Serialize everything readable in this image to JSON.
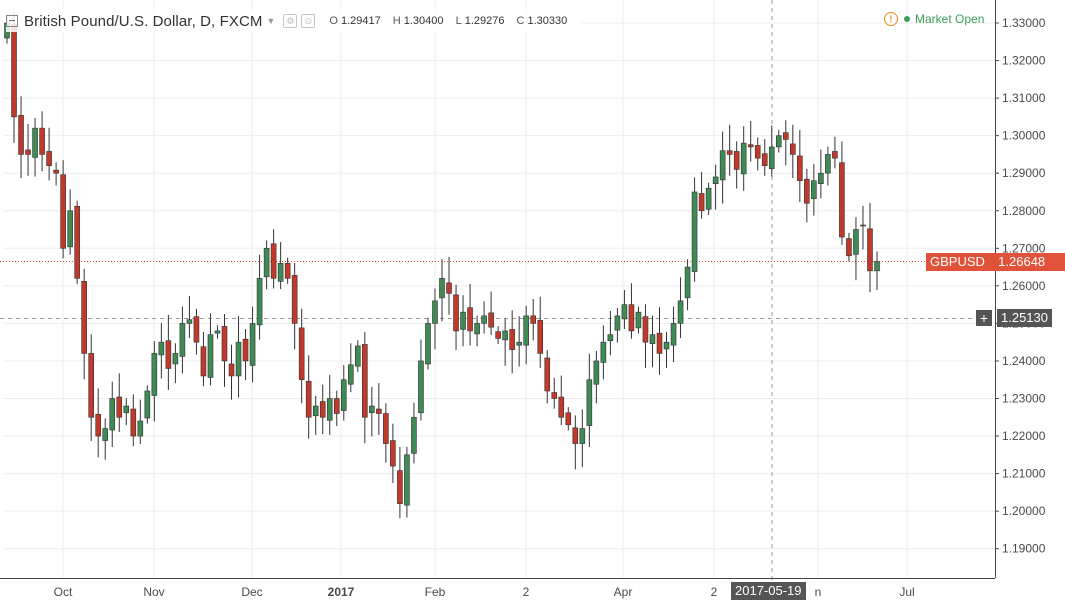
{
  "header": {
    "symbol_title": "British Pound/U.S. Dollar, D, FXCM",
    "ohlc": {
      "open_label": "O",
      "open": "1.29417",
      "high_label": "H",
      "high": "1.30400",
      "low_label": "L",
      "low": "1.29276",
      "close_label": "C",
      "close": "1.30330"
    }
  },
  "status": {
    "market_text": "Market Open",
    "market_color": "#3a9e59",
    "alert_color": "#f0891c"
  },
  "price_axis": {
    "ticks": [
      "1.33000",
      "1.32000",
      "1.31000",
      "1.30000",
      "1.29000",
      "1.28000",
      "1.27000",
      "1.26000",
      "1.25000",
      "1.24000",
      "1.23000",
      "1.22000",
      "1.21000",
      "1.20000",
      "1.19000"
    ],
    "tick_values": [
      1.33,
      1.32,
      1.31,
      1.3,
      1.29,
      1.28,
      1.27,
      1.26,
      1.25,
      1.24,
      1.23,
      1.22,
      1.21,
      1.2,
      1.19
    ]
  },
  "symbol_label": {
    "text": "GBPUSD",
    "price": "1.26648",
    "value": 1.26648,
    "color": "#e0533a"
  },
  "crosshair": {
    "price": "1.25130",
    "value": 1.2513,
    "date": "2017-05-19",
    "plus": "+"
  },
  "time_axis": {
    "labels": [
      {
        "text": "Oct",
        "bold": false
      },
      {
        "text": "Nov",
        "bold": false
      },
      {
        "text": "Dec",
        "bold": false
      },
      {
        "text": "2017",
        "bold": true
      },
      {
        "text": "Feb",
        "bold": false
      },
      {
        "text": "2",
        "bold": false
      },
      {
        "text": "Apr",
        "bold": false
      },
      {
        "text": "2",
        "bold": false
      },
      {
        "text": "n",
        "bold": false
      },
      {
        "text": "Jul",
        "bold": false
      }
    ]
  },
  "colors": {
    "up": "#3f8a55",
    "down": "#c0392b",
    "grid": "#eeeeee",
    "axis": "#444444"
  },
  "chart_data": {
    "type": "candlestick",
    "title": "British Pound/U.S. Dollar, D, FXCM",
    "ylim": [
      1.184,
      1.335
    ],
    "y_ticks": [
      1.19,
      1.2,
      1.21,
      1.22,
      1.23,
      1.24,
      1.25,
      1.26,
      1.27,
      1.28,
      1.29,
      1.3,
      1.31,
      1.32,
      1.33
    ],
    "x_labels": [
      "Oct",
      "Nov",
      "Dec",
      "2017",
      "Feb",
      "2",
      "Apr",
      "2",
      "n",
      "Jul"
    ],
    "grid": true,
    "last_price": 1.26648,
    "close_path": [
      1.33,
      1.305,
      1.295,
      1.295,
      1.302,
      1.295,
      1.292,
      1.29,
      1.27,
      1.28,
      1.262,
      1.242,
      1.225,
      1.22,
      1.222,
      1.23,
      1.225,
      1.228,
      1.22,
      1.224,
      1.232,
      1.242,
      1.245,
      1.238,
      1.242,
      1.25,
      1.251,
      1.245,
      1.236,
      1.247,
      1.248,
      1.24,
      1.236,
      1.245,
      1.24,
      1.25,
      1.262,
      1.27,
      1.262,
      1.266,
      1.262,
      1.25,
      1.235,
      1.225,
      1.228,
      1.225,
      1.23,
      1.226,
      1.235,
      1.239,
      1.244,
      1.225,
      1.228,
      1.226,
      1.218,
      1.212,
      1.202,
      1.215,
      1.225,
      1.24,
      1.25,
      1.256,
      1.262,
      1.258,
      1.248,
      1.253,
      1.248,
      1.25,
      1.252,
      1.249,
      1.246,
      1.248,
      1.243,
      1.245,
      1.252,
      1.25,
      1.242,
      1.232,
      1.23,
      1.225,
      1.223,
      1.218,
      1.222,
      1.235,
      1.24,
      1.245,
      1.247,
      1.252,
      1.255,
      1.248,
      1.253,
      1.245,
      1.247,
      1.242,
      1.245,
      1.25,
      1.256,
      1.265,
      1.285,
      1.28,
      1.286,
      1.289,
      1.296,
      1.295,
      1.291,
      1.298,
      1.297,
      1.294,
      1.292,
      1.297,
      1.3,
      1.299,
      1.295,
      1.288,
      1.282,
      1.288,
      1.29,
      1.295,
      1.294,
      1.273,
      1.268,
      1.275,
      1.276,
      1.264,
      1.26648
    ]
  }
}
